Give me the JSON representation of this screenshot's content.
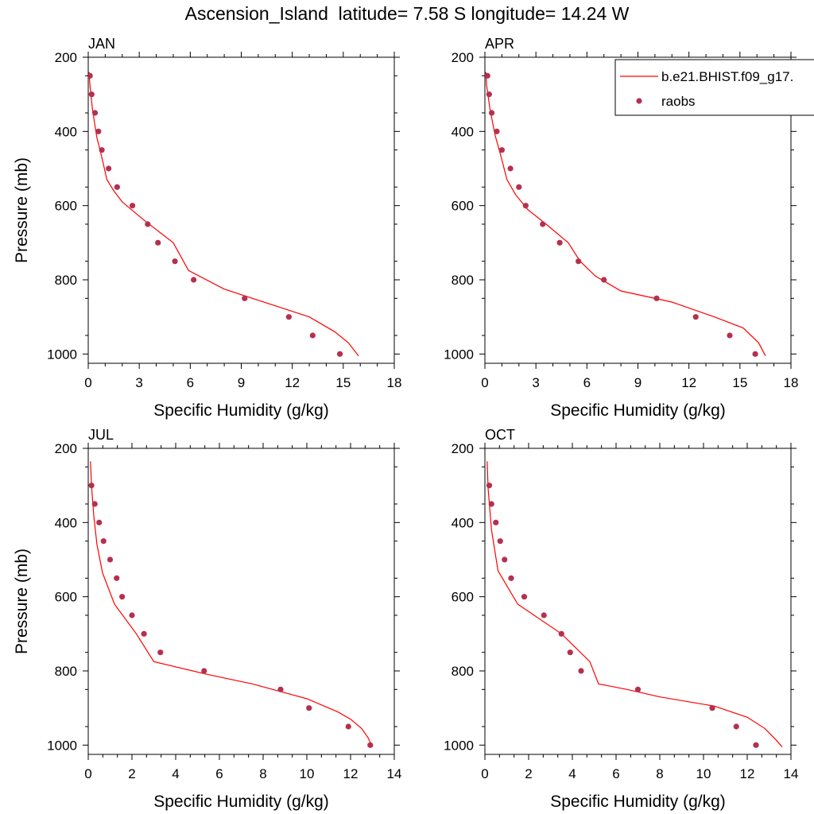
{
  "title": "Ascension_Island  latitude= 7.58 S longitude= 14.24 W",
  "colors": {
    "model": "#ff0000",
    "obs": "#b5304f"
  },
  "legend": {
    "model_label": "b.e21.BHIST.f09_g17.",
    "obs_label": "raobs",
    "placement": "top-right of APR panel (clipped)"
  },
  "chart_data": [
    {
      "type": "line",
      "panel_label": "JAN",
      "xlabel": "Specific Humidity (g/kg)",
      "ylabel": "Pressure (mb)",
      "xlim": [
        0,
        18
      ],
      "ylim": [
        1025,
        200
      ],
      "x_ticks": [
        0,
        3,
        6,
        9,
        12,
        15,
        18
      ],
      "y_ticks": [
        200,
        400,
        600,
        800,
        1000
      ],
      "grid": false,
      "model": {
        "name": "b.e21.BHIST.f09_g17.",
        "q": [
          0.05,
          0.1,
          0.25,
          0.5,
          0.8,
          1.1,
          1.5,
          2.0,
          3.3,
          5.0,
          5.9,
          8.0,
          11.0,
          13.0,
          14.5,
          15.3,
          15.9
        ],
        "p": [
          240,
          275,
          340,
          415,
          470,
          530,
          560,
          590,
          640,
          700,
          775,
          825,
          870,
          900,
          940,
          970,
          1005
        ]
      },
      "obs": {
        "name": "raobs",
        "q": [
          0.1,
          0.2,
          0.4,
          0.6,
          0.8,
          1.2,
          1.7,
          2.6,
          3.5,
          4.1,
          5.1,
          6.2,
          9.2,
          11.8,
          13.2,
          14.8
        ],
        "p": [
          250,
          300,
          350,
          400,
          450,
          500,
          550,
          600,
          650,
          700,
          750,
          800,
          850,
          900,
          950,
          1000
        ]
      }
    },
    {
      "type": "line",
      "panel_label": "APR",
      "xlabel": "Specific Humidity (g/kg)",
      "ylabel": "",
      "xlim": [
        0,
        18
      ],
      "ylim": [
        1025,
        200
      ],
      "x_ticks": [
        0,
        3,
        6,
        9,
        12,
        15,
        18
      ],
      "y_ticks": [
        200,
        400,
        600,
        800,
        1000
      ],
      "grid": false,
      "model": {
        "name": "b.e21.BHIST.f09_g17.",
        "q": [
          0.05,
          0.1,
          0.3,
          0.6,
          0.9,
          1.3,
          1.8,
          2.5,
          3.6,
          4.9,
          5.6,
          6.5,
          8.0,
          11.0,
          13.5,
          15.2,
          16.1,
          16.5
        ],
        "p": [
          240,
          275,
          340,
          410,
          460,
          530,
          570,
          610,
          650,
          700,
          750,
          790,
          830,
          860,
          900,
          930,
          970,
          1005
        ]
      },
      "obs": {
        "name": "raobs",
        "q": [
          0.15,
          0.25,
          0.4,
          0.7,
          1.0,
          1.5,
          2.0,
          2.4,
          3.4,
          4.4,
          5.5,
          7.0,
          10.1,
          12.4,
          14.4,
          15.9
        ],
        "p": [
          250,
          300,
          350,
          400,
          450,
          500,
          550,
          600,
          650,
          700,
          750,
          800,
          850,
          900,
          950,
          1000
        ]
      }
    },
    {
      "type": "line",
      "panel_label": "JUL",
      "xlabel": "Specific Humidity (g/kg)",
      "ylabel": "Pressure (mb)",
      "xlim": [
        0,
        14
      ],
      "ylim": [
        1025,
        200
      ],
      "x_ticks": [
        0,
        2,
        4,
        6,
        8,
        10,
        12,
        14
      ],
      "y_ticks": [
        200,
        400,
        600,
        800,
        1000
      ],
      "grid": false,
      "model": {
        "name": "b.e21.BHIST.f09_g17.",
        "q": [
          0.1,
          0.15,
          0.25,
          0.4,
          0.65,
          1.2,
          2.2,
          3.0,
          5.5,
          7.5,
          10.0,
          11.4,
          12.0,
          12.5,
          12.8,
          13.0
        ],
        "p": [
          235,
          300,
          380,
          460,
          535,
          620,
          700,
          775,
          810,
          835,
          875,
          910,
          930,
          955,
          980,
          1005
        ]
      },
      "obs": {
        "name": "raobs",
        "q": [
          0.15,
          0.3,
          0.5,
          0.7,
          1.0,
          1.3,
          1.55,
          2.0,
          2.55,
          3.3,
          5.3,
          8.8,
          10.1,
          11.9,
          12.9
        ],
        "p": [
          300,
          350,
          400,
          450,
          500,
          550,
          600,
          650,
          700,
          750,
          800,
          850,
          900,
          950,
          1000
        ]
      }
    },
    {
      "type": "line",
      "panel_label": "OCT",
      "xlabel": "Specific Humidity (g/kg)",
      "ylabel": "",
      "xlim": [
        0,
        14
      ],
      "ylim": [
        1025,
        200
      ],
      "x_ticks": [
        0,
        2,
        4,
        6,
        8,
        10,
        12,
        14
      ],
      "y_ticks": [
        200,
        400,
        600,
        800,
        1000
      ],
      "grid": false,
      "model": {
        "name": "b.e21.BHIST.f09_g17.",
        "q": [
          0.1,
          0.15,
          0.3,
          0.6,
          1.5,
          3.5,
          4.8,
          5.2,
          6.5,
          8.0,
          10.5,
          12.0,
          12.8,
          13.3,
          13.6
        ],
        "p": [
          235,
          310,
          420,
          530,
          620,
          700,
          775,
          835,
          850,
          870,
          895,
          925,
          955,
          985,
          1005
        ]
      },
      "obs": {
        "name": "raobs",
        "q": [
          0.2,
          0.3,
          0.5,
          0.7,
          0.9,
          1.2,
          1.8,
          2.7,
          3.5,
          3.9,
          4.4,
          7.0,
          10.4,
          11.5,
          12.4
        ],
        "p": [
          300,
          350,
          400,
          450,
          500,
          550,
          600,
          650,
          700,
          750,
          800,
          850,
          900,
          950,
          1000
        ]
      }
    }
  ]
}
